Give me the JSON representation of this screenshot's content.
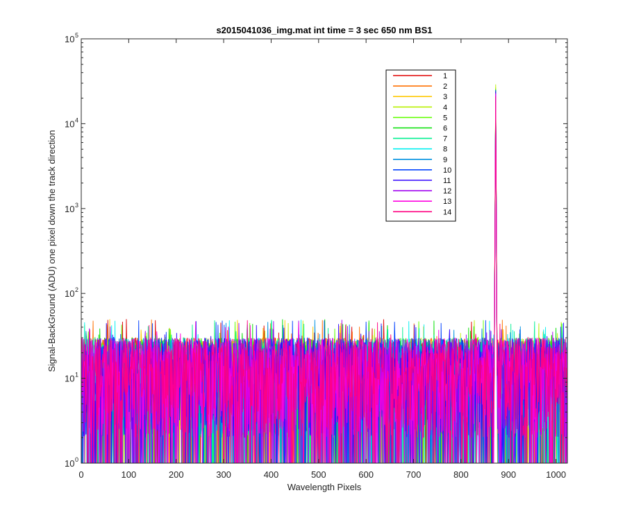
{
  "chart_data": {
    "type": "line",
    "title": "s2015041036_img.mat int time = 3 sec  650 nm BS1",
    "xlabel": "Wavelength Pixels",
    "ylabel": "Signal-BackGround (ADU) one pixel down the track direction",
    "xlim": [
      0,
      1024
    ],
    "ylim": [
      1,
      100000
    ],
    "yscale": "log",
    "x_ticks": [
      "0",
      "100",
      "200",
      "300",
      "400",
      "500",
      "600",
      "700",
      "800",
      "900",
      "1000"
    ],
    "y_ticks": [
      {
        "base": "10",
        "exp": "0",
        "value": 1
      },
      {
        "base": "10",
        "exp": "1",
        "value": 10
      },
      {
        "base": "10",
        "exp": "2",
        "value": 100
      },
      {
        "base": "10",
        "exp": "3",
        "value": 1000
      },
      {
        "base": "10",
        "exp": "4",
        "value": 10000
      },
      {
        "base": "10",
        "exp": "5",
        "value": 100000
      }
    ],
    "noise_floor": {
      "min": 1,
      "typical_max": 30,
      "max": 50
    },
    "peak": {
      "x": 873,
      "width": 6
    },
    "legend_position": "upper-right",
    "grid": false,
    "series": [
      {
        "name": "1",
        "color": "#e00000",
        "peak": 22000
      },
      {
        "name": "2",
        "color": "#ff7000",
        "peak": 24000
      },
      {
        "name": "3",
        "color": "#ffc800",
        "peak": 27000
      },
      {
        "name": "4",
        "color": "#b8f000",
        "peak": 29000
      },
      {
        "name": "5",
        "color": "#60ff00",
        "peak": 26000
      },
      {
        "name": "6",
        "color": "#00e000",
        "peak": 25000
      },
      {
        "name": "7",
        "color": "#00f090",
        "peak": 24000
      },
      {
        "name": "8",
        "color": "#00f0f0",
        "peak": 23000
      },
      {
        "name": "9",
        "color": "#0090e0",
        "peak": 22000
      },
      {
        "name": "10",
        "color": "#0040ff",
        "peak": 25000
      },
      {
        "name": "11",
        "color": "#3000ff",
        "peak": 24000
      },
      {
        "name": "12",
        "color": "#a000f0",
        "peak": 23000
      },
      {
        "name": "13",
        "color": "#ff00e0",
        "peak": 22500
      },
      {
        "name": "14",
        "color": "#ff0080",
        "peak": 21000
      }
    ]
  }
}
